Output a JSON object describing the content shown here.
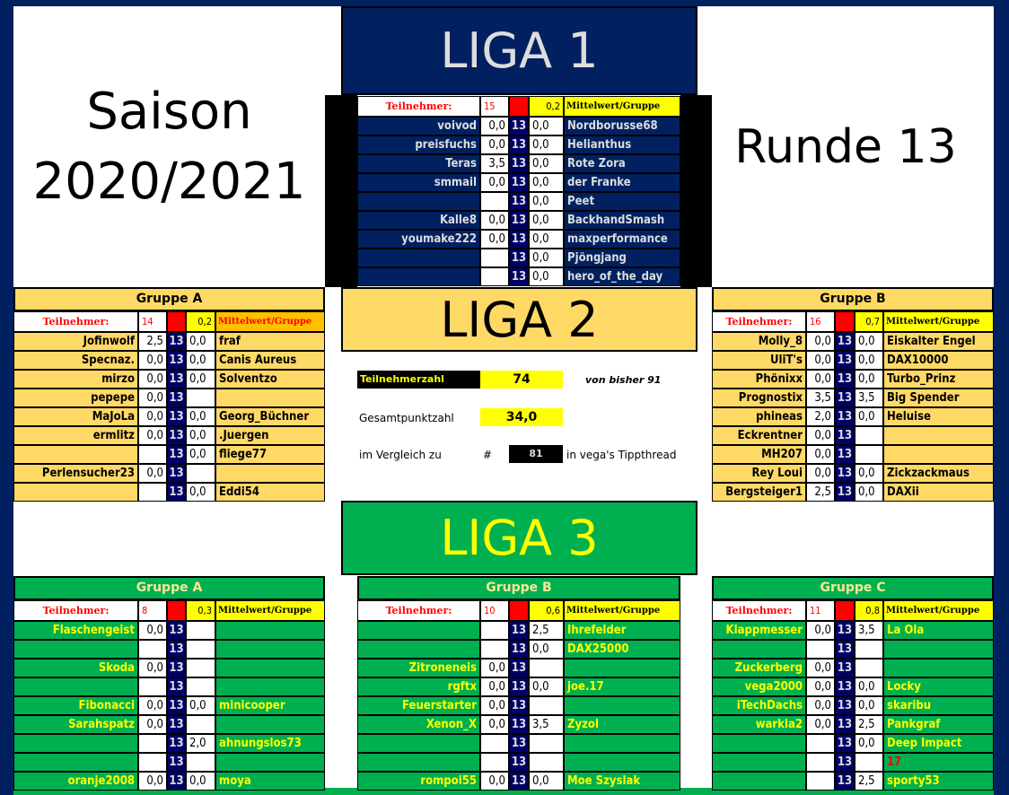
{
  "season": {
    "line1": "Saison",
    "line2": "2020/2021"
  },
  "round": "Runde 13",
  "liga1": {
    "title": "LIGA 1"
  },
  "liga2": {
    "title": "LIGA 2"
  },
  "liga3": {
    "title": "LIGA 3"
  },
  "stats": {
    "participants_label": "Teilnehmerzahl",
    "participants_value": "74",
    "of_total": "von bisher 91",
    "total_points_label": "Gesamtpunktzahl",
    "total_points_value": "34,0",
    "compare_label": "im Vergleich zu",
    "hash": "#",
    "compare_value": "81",
    "compare_suffix": "in vega's Tippthread"
  },
  "colors": {
    "navy": "#002060",
    "liga2": "#FFD966",
    "liga3": "#00B050",
    "round_cell": "#000066",
    "highlight": "#FFFF00",
    "alert": "#FF0000"
  },
  "groups": [
    {
      "id": "liga1",
      "title": "",
      "label": "Teilnehmer:",
      "count": "15",
      "avg": "0,2",
      "avg_label": "Mittelwert/Gruppe",
      "rows": [
        [
          "voivod",
          "0,0",
          "13",
          "0,0",
          "Nordborusse68"
        ],
        [
          "preisfuchs",
          "0,0",
          "13",
          "0,0",
          "Helianthus"
        ],
        [
          "Teras",
          "3,5",
          "13",
          "0,0",
          "Rote Zora"
        ],
        [
          "smmail",
          "0,0",
          "13",
          "0,0",
          "der Franke"
        ],
        [
          "",
          "",
          "13",
          "0,0",
          "Peet"
        ],
        [
          "Kalle8",
          "0,0",
          "13",
          "0,0",
          "BackhandSmash"
        ],
        [
          "youmake222",
          "0,0",
          "13",
          "0,0",
          "maxperformance"
        ],
        [
          "",
          "",
          "13",
          "0,0",
          "Pjöngjang"
        ],
        [
          "",
          "",
          "13",
          "0,0",
          "hero_of_the_day"
        ]
      ]
    },
    {
      "id": "liga2a",
      "title": "Gruppe A",
      "label": "Teilnehmer:",
      "count": "14",
      "avg": "0,2",
      "avg_label": "Mittelwert/Gruppe",
      "rows": [
        [
          "Jofinwolf",
          "2,5",
          "13",
          "0,0",
          "fraf"
        ],
        [
          "Specnaz.",
          "0,0",
          "13",
          "0,0",
          "Canis Aureus"
        ],
        [
          "mirzo",
          "0,0",
          "13",
          "0,0",
          "Solventzo"
        ],
        [
          "pepepe",
          "0,0",
          "13",
          "",
          ""
        ],
        [
          "MaJoLa",
          "0,0",
          "13",
          "0,0",
          "Georg_Büchner"
        ],
        [
          "ermlitz",
          "0,0",
          "13",
          "0,0",
          ".Juergen"
        ],
        [
          "",
          "",
          "13",
          "0,0",
          "fliege77"
        ],
        [
          "Perlensucher23",
          "0,0",
          "13",
          "",
          ""
        ],
        [
          "",
          "",
          "13",
          "0,0",
          "Eddi54"
        ]
      ]
    },
    {
      "id": "liga2b",
      "title": "Gruppe B",
      "label": "Teilnehmer:",
      "count": "16",
      "avg": "0,7",
      "avg_label": "Mittelwert/Gruppe",
      "rows": [
        [
          "Molly_8",
          "0,0",
          "13",
          "0,0",
          "Eiskalter Engel"
        ],
        [
          "UliT's",
          "0,0",
          "13",
          "0,0",
          "DAX10000"
        ],
        [
          "Phönixx",
          "0,0",
          "13",
          "0,0",
          "Turbo_Prinz"
        ],
        [
          "Prognostix",
          "3,5",
          "13",
          "3,5",
          "Big Spender"
        ],
        [
          "phineas",
          "2,0",
          "13",
          "0,0",
          "Heluise"
        ],
        [
          "Eckrentner",
          "0,0",
          "13",
          "",
          ""
        ],
        [
          "MH207",
          "0,0",
          "13",
          "",
          ""
        ],
        [
          "Rey Loui",
          "0,0",
          "13",
          "0,0",
          "Zickzackmaus"
        ],
        [
          "Bergsteiger1",
          "2,5",
          "13",
          "0,0",
          "DAXii"
        ]
      ]
    },
    {
      "id": "liga3a",
      "title": "Gruppe A",
      "label": "Teilnehmer:",
      "count": "8",
      "avg": "0,3",
      "avg_label": "Mittelwert/Gruppe",
      "rows": [
        [
          "Flaschengeist",
          "0,0",
          "13",
          "",
          ""
        ],
        [
          "",
          "",
          "13",
          "",
          ""
        ],
        [
          "Skoda",
          "0,0",
          "13",
          "",
          ""
        ],
        [
          "",
          "",
          "13",
          "",
          ""
        ],
        [
          "Fibonacci",
          "0,0",
          "13",
          "0,0",
          "minicooper"
        ],
        [
          "Sarahspatz",
          "0,0",
          "13",
          "",
          ""
        ],
        [
          "",
          "",
          "13",
          "2,0",
          "ahnungslos73"
        ],
        [
          "",
          "",
          "13",
          "",
          ""
        ],
        [
          "oranje2008",
          "0,0",
          "13",
          "0,0",
          "moya"
        ]
      ]
    },
    {
      "id": "liga3b",
      "title": "Gruppe B",
      "label": "Teilnehmer:",
      "count": "10",
      "avg": "0,6",
      "avg_label": "Mittelwert/Gruppe",
      "rows": [
        [
          "",
          "",
          "13",
          "2,5",
          "Ihrefelder"
        ],
        [
          "",
          "",
          "13",
          "0,0",
          "DAX25000"
        ],
        [
          "Zitroneneis",
          "0,0",
          "13",
          "",
          ""
        ],
        [
          "rgftx",
          "0,0",
          "13",
          "0,0",
          "joe.17"
        ],
        [
          "Feuerstarter",
          "0,0",
          "13",
          "",
          ""
        ],
        [
          "Xenon_X",
          "0,0",
          "13",
          "3,5",
          "Zyzol"
        ],
        [
          "",
          "",
          "13",
          "",
          ""
        ],
        [
          "",
          "",
          "13",
          "",
          ""
        ],
        [
          "rompoi55",
          "0,0",
          "13",
          "0,0",
          "Moe Szyslak"
        ]
      ]
    },
    {
      "id": "liga3c",
      "title": "Gruppe C",
      "label": "Teilnehmer:",
      "count": "11",
      "avg": "0,8",
      "avg_label": "Mittelwert/Gruppe",
      "rows": [
        [
          "Klappmesser",
          "0,0",
          "13",
          "3,5",
          "La Ola"
        ],
        [
          "",
          "",
          "13",
          "",
          ""
        ],
        [
          "Zuckerberg",
          "0,0",
          "13",
          "",
          ""
        ],
        [
          "vega2000",
          "0,0",
          "13",
          "0,0",
          "Locky"
        ],
        [
          "iTechDachs",
          "0,0",
          "13",
          "0,0",
          "skaribu"
        ],
        [
          "warkla2",
          "0,0",
          "13",
          "2,5",
          "Pankgraf"
        ],
        [
          "",
          "",
          "13",
          "0,0",
          "Deep Impact"
        ],
        [
          "",
          "",
          "13",
          "",
          "17"
        ],
        [
          "",
          "",
          "13",
          "2,5",
          "sporty53"
        ]
      ]
    }
  ]
}
